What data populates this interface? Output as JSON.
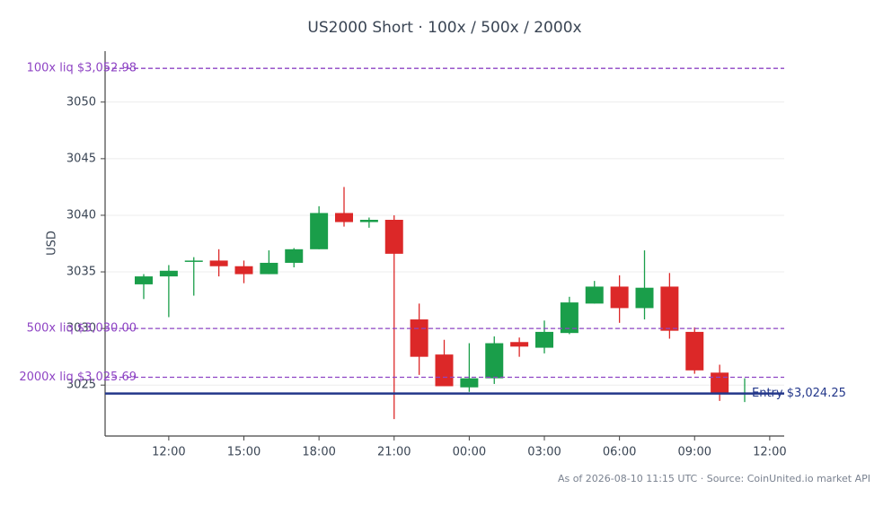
{
  "chart_data": {
    "type": "candlestick",
    "title": "US2000 Short · 100x / 500x / 2000x",
    "ylabel": "USD",
    "footnote": "As of 2026-08-10 11:15 UTC · Source: CoinUnited.io market API",
    "categories": [
      null,
      "12:00",
      null,
      null,
      "15:00",
      null,
      null,
      "18:00",
      null,
      null,
      "21:00",
      null,
      null,
      "00:00",
      null,
      null,
      "03:00",
      null,
      null,
      "06:00",
      null,
      null,
      "09:00",
      null,
      null,
      "12:00"
    ],
    "open": [
      3033.9,
      3034.6,
      3035.9,
      3036.0,
      3035.5,
      3034.8,
      3035.8,
      3037.0,
      3040.2,
      3039.4,
      3039.6,
      3030.8,
      3027.7,
      3024.8,
      3025.6,
      3028.8,
      3028.3,
      3029.6,
      3032.2,
      3033.7,
      3031.8,
      3033.7,
      3029.7,
      3026.1,
      3024.25,
      null
    ],
    "high": [
      3034.8,
      3035.6,
      3036.3,
      3037.0,
      3036.0,
      3036.9,
      3037.1,
      3040.8,
      3042.5,
      3039.8,
      3040.0,
      3032.2,
      3029.0,
      3028.7,
      3029.3,
      3029.2,
      3030.7,
      3032.8,
      3034.2,
      3034.7,
      3036.9,
      3034.9,
      3030.1,
      3026.8,
      3025.6,
      null
    ],
    "low": [
      3032.6,
      3031.0,
      3032.9,
      3034.6,
      3034.0,
      3034.8,
      3035.4,
      3037.0,
      3039.0,
      3038.9,
      3022.0,
      3025.9,
      3024.9,
      3024.4,
      3025.1,
      3027.5,
      3027.8,
      3029.5,
      3032.2,
      3030.5,
      3030.8,
      3029.1,
      3026.0,
      3023.6,
      3023.5,
      null
    ],
    "close": [
      3034.6,
      3035.1,
      3036.0,
      3035.5,
      3034.8,
      3035.8,
      3037.0,
      3040.2,
      3039.4,
      3039.6,
      3036.6,
      3027.5,
      3024.9,
      3025.6,
      3028.7,
      3028.4,
      3029.7,
      3032.3,
      3033.7,
      3031.8,
      3033.6,
      3029.8,
      3026.3,
      3024.3,
      3024.3,
      null
    ],
    "up_color": "#1a9e4a",
    "down_color": "#dc2828",
    "ylim": [
      3020.5,
      3054.5
    ],
    "yticks": [
      3025,
      3030,
      3035,
      3040,
      3045,
      3050
    ],
    "grid": true,
    "reference_lines": [
      {
        "label": "100x liq $3,052.98",
        "value": 3052.98,
        "color": "#8e44c4",
        "style": "dashed",
        "label_side": "left"
      },
      {
        "label": "500x liq $3,030.00",
        "value": 3030.0,
        "color": "#8e44c4",
        "style": "dashed",
        "label_side": "left"
      },
      {
        "label": "2000x liq $3,025.69",
        "value": 3025.69,
        "color": "#8e44c4",
        "style": "dashed",
        "label_side": "left"
      },
      {
        "label": "Entry $3,024.25",
        "value": 3024.25,
        "color": "#23378a",
        "style": "solid",
        "label_side": "right"
      }
    ]
  }
}
